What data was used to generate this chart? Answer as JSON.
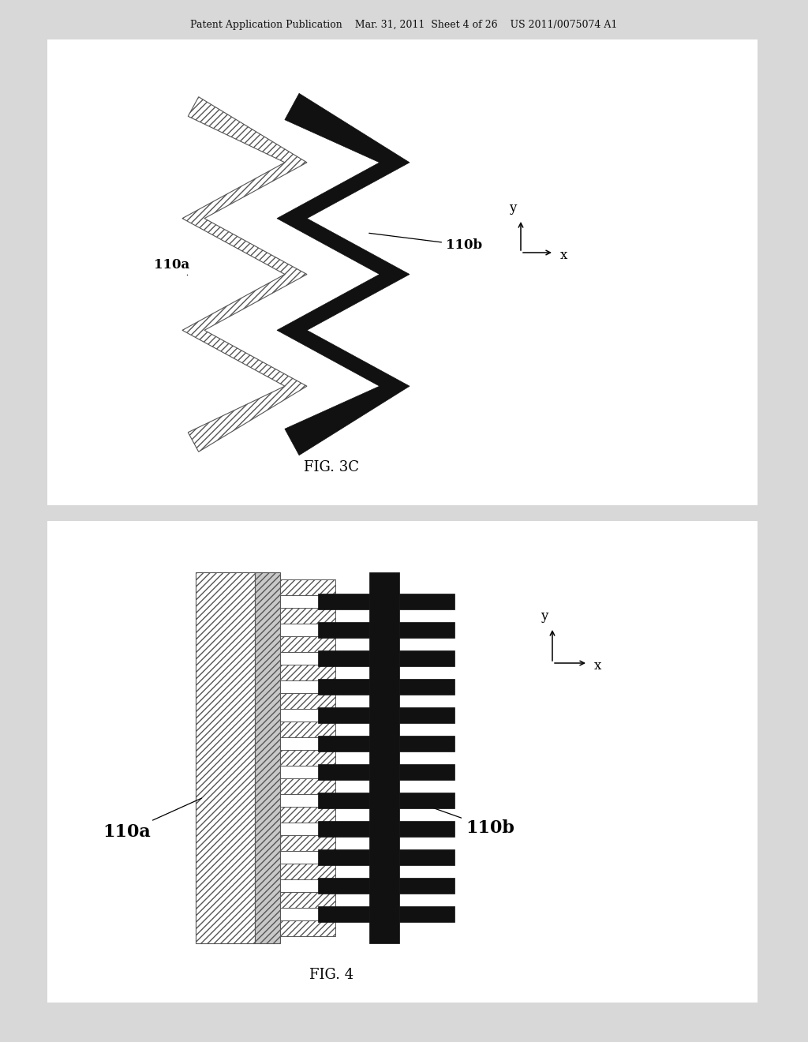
{
  "bg_color": "#d8d8d8",
  "fig_bg": "#ffffff",
  "header_text": "Patent Application Publication    Mar. 31, 2011  Sheet 4 of 26    US 2011/0075074 A1",
  "fig3c_label": "FIG. 3C",
  "fig4_label": "FIG. 4",
  "label_110a_top": "110a",
  "label_110b_top": "110b",
  "label_110a_bot": "110a",
  "label_110b_bot": "110b",
  "hatch_color": "#555555",
  "black_color": "#111111"
}
